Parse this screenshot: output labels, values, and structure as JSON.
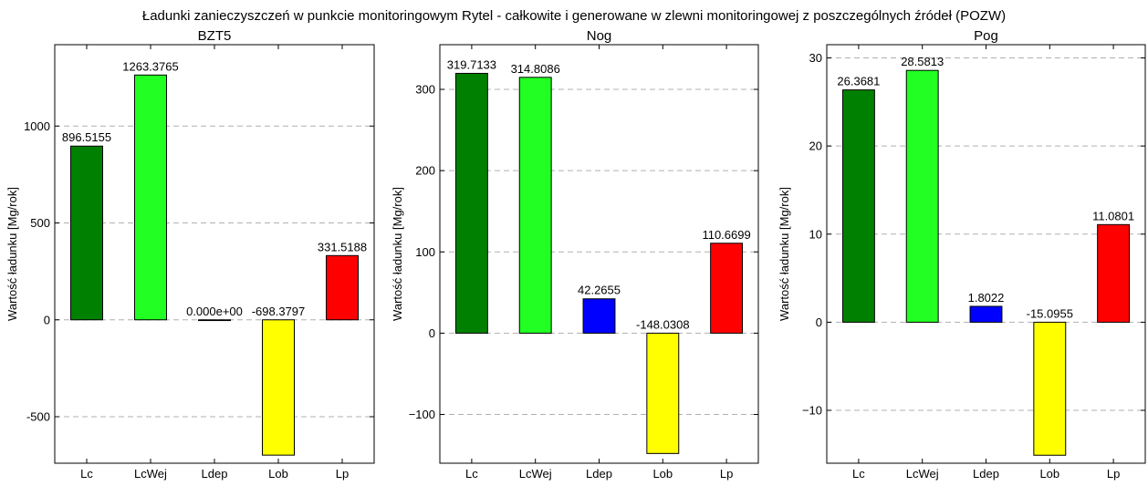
{
  "figure_title": "Ładunki zanieczyszczeń w punkcie monitoringowym Rytel - całkowite i generowane w zlewni monitoringowej z poszczególnych źródeł (POZW)",
  "chart_data": [
    {
      "type": "bar",
      "title": "BZT5",
      "ylabel": "Wartość ładunku  [Mg/rok]",
      "xlabel": "",
      "categories": [
        "Lc",
        "LcWej",
        "Ldep",
        "Lob",
        "Lp"
      ],
      "values": [
        896.5155,
        1263.3765,
        0.0,
        -698.3797,
        331.5188
      ],
      "value_labels": [
        "896.5155",
        "1263.3765",
        "0.000e+00",
        "-698.3797",
        "331.5188"
      ],
      "colors": [
        "#008000",
        "#22ff22",
        "#0000ff",
        "#ffff00",
        "#ff0000"
      ],
      "ylim": [
        -740,
        1420
      ],
      "yticks": [
        -500,
        0,
        500,
        1000
      ],
      "ytick_labels": [
        "-500",
        "0",
        "500",
        "1000"
      ],
      "grid": "y-dashed"
    },
    {
      "type": "bar",
      "title": "Nog",
      "ylabel": "Wartość ładunku  [Mg/rok]",
      "xlabel": "",
      "categories": [
        "Lc",
        "LcWej",
        "Ldep",
        "Lob",
        "Lp"
      ],
      "values": [
        319.7133,
        314.8086,
        42.2655,
        -148.0308,
        110.6699
      ],
      "value_labels": [
        "319.7133",
        "314.8086",
        "42.2655",
        "-148.0308",
        "110.6699"
      ],
      "colors": [
        "#008000",
        "#22ff22",
        "#0000ff",
        "#ffff00",
        "#ff0000"
      ],
      "ylim": [
        -160,
        355
      ],
      "yticks": [
        -100,
        0,
        100,
        200,
        300
      ],
      "ytick_labels": [
        "−100",
        "0",
        "100",
        "200",
        "300"
      ],
      "grid": "y-dashed"
    },
    {
      "type": "bar",
      "title": "Pog",
      "ylabel": "Wartość ładunku  [Mg/rok]",
      "xlabel": "",
      "categories": [
        "Lc",
        "LcWej",
        "Ldep",
        "Lob",
        "Lp"
      ],
      "values": [
        26.3681,
        28.5813,
        1.8022,
        -15.0955,
        11.0801
      ],
      "value_labels": [
        "26.3681",
        "28.5813",
        "1.8022",
        "-15.0955",
        "11.0801"
      ],
      "colors": [
        "#008000",
        "#22ff22",
        "#0000ff",
        "#ffff00",
        "#ff0000"
      ],
      "ylim": [
        -16,
        31.5
      ],
      "yticks": [
        -10,
        0,
        10,
        20,
        30
      ],
      "ytick_labels": [
        "−10",
        "0",
        "10",
        "20",
        "30"
      ],
      "grid": "y-dashed"
    }
  ]
}
